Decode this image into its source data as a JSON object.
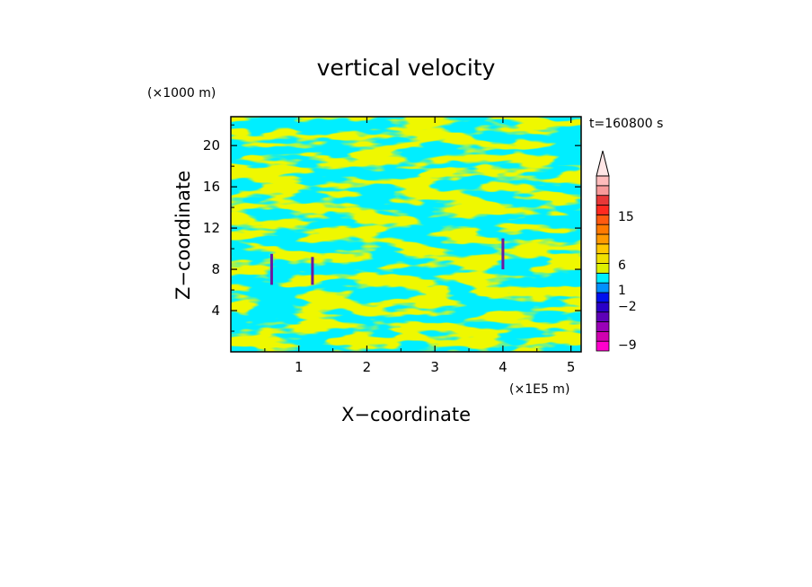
{
  "chart_data": {
    "type": "heatmap",
    "title": "vertical velocity",
    "xlabel": "X−coordinate",
    "ylabel": "Z−coordinate",
    "x_unit": "(×1E5 m)",
    "y_unit": "(×1000 m)",
    "time_label": "t=160800 s",
    "xlim": [
      0,
      5.15
    ],
    "ylim": [
      0,
      22.8
    ],
    "x_ticks": [
      1,
      2,
      3,
      4,
      5
    ],
    "y_ticks": [
      4,
      8,
      12,
      16,
      20
    ],
    "field_colors": {
      "negative": "#00eeff",
      "positive": "#ddf000",
      "downdraft_core": "#6a1aa0"
    },
    "colorbar": {
      "tick_labels": [
        {
          "text": "15",
          "value": 15
        },
        {
          "text": "6",
          "value": 6
        },
        {
          "text": "1",
          "value": 1
        },
        {
          "text": "−2",
          "value": -2
        },
        {
          "text": "−9",
          "value": -9
        }
      ],
      "bins": [
        {
          "color": "#ff00cc"
        },
        {
          "color": "#d000b0"
        },
        {
          "color": "#9a00b8"
        },
        {
          "color": "#5e00b8"
        },
        {
          "color": "#2a00c8"
        },
        {
          "color": "#0010ee"
        },
        {
          "color": "#0090ff"
        },
        {
          "color": "#00eeff"
        },
        {
          "color": "#ddf000"
        },
        {
          "color": "#f0e000"
        },
        {
          "color": "#ffc800"
        },
        {
          "color": "#ff9a00"
        },
        {
          "color": "#ff7a00"
        },
        {
          "color": "#ff5a10"
        },
        {
          "color": "#ff2a20"
        },
        {
          "color": "#e83838"
        },
        {
          "color": "#f89a9a"
        },
        {
          "color": "#ffbcbc"
        }
      ],
      "extend_max_color": "#ffe6e6"
    },
    "updraft_columns": [
      {
        "x": 0.6,
        "z_bottom": 6.5,
        "z_top": 9.5
      },
      {
        "x": 1.2,
        "z_bottom": 6.5,
        "z_top": 9.2
      },
      {
        "x": 4.0,
        "z_bottom": 8.0,
        "z_top": 11.0
      }
    ]
  }
}
